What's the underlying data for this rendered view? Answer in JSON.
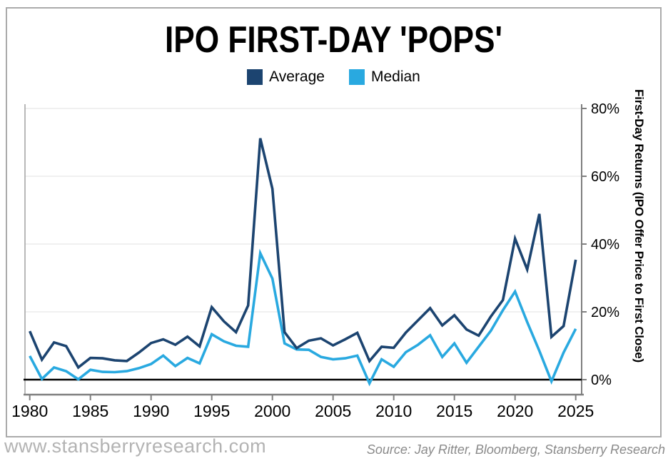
{
  "title": "IPO FIRST-DAY 'POPS'",
  "legend": {
    "average_label": "Average",
    "median_label": "Median"
  },
  "colors": {
    "average": "#1c4470",
    "median": "#29a9e0",
    "zero_line": "#000000",
    "axis": "#7f7f7f",
    "gridline": "#ebebeb"
  },
  "footer": {
    "website": "www.stansberryresearch.com",
    "source": "Source: Jay Ritter, Bloomberg, Stansberry Research"
  },
  "chart_data": {
    "type": "line",
    "title": "IPO FIRST-DAY 'POPS'",
    "ylabel": "First-Day Returns (IPO Offer Price to First Close)",
    "legend_position": "top-center",
    "axis_side": "right",
    "grid": "horizontal",
    "ylim": [
      -5,
      84
    ],
    "y_tick_values": [
      80,
      60,
      40,
      20,
      0
    ],
    "y_tick_labels": [
      "80%",
      "60%",
      "40%",
      "20%",
      "0%"
    ],
    "x_ticks": [
      1980,
      1985,
      1990,
      1995,
      2000,
      2005,
      2010,
      2015,
      2020,
      2025
    ],
    "x": [
      1980,
      1981,
      1982,
      1983,
      1984,
      1985,
      1986,
      1987,
      1988,
      1989,
      1990,
      1991,
      1992,
      1993,
      1994,
      1995,
      1996,
      1997,
      1998,
      1999,
      2000,
      2001,
      2002,
      2003,
      2004,
      2005,
      2006,
      2007,
      2008,
      2009,
      2010,
      2011,
      2012,
      2013,
      2014,
      2015,
      2016,
      2017,
      2018,
      2019,
      2020,
      2021,
      2022,
      2023,
      2024,
      2025
    ],
    "series": [
      {
        "name": "Average",
        "color": "#1c4470",
        "values": [
          14.3,
          5.9,
          11.0,
          9.9,
          3.6,
          6.4,
          6.3,
          5.7,
          5.5,
          8.0,
          10.8,
          11.9,
          10.3,
          12.7,
          9.8,
          21.4,
          17.2,
          14.0,
          21.9,
          71.2,
          56.3,
          14.0,
          9.3,
          11.5,
          12.2,
          10.1,
          11.9,
          13.8,
          5.5,
          9.7,
          9.4,
          13.9,
          17.5,
          21.1,
          16.0,
          19.0,
          14.8,
          13.0,
          18.6,
          23.5,
          41.6,
          32.5,
          48.9,
          12.6,
          15.8,
          35.4
        ]
      },
      {
        "name": "Median",
        "color": "#29a9e0",
        "values": [
          7.0,
          0.2,
          3.6,
          2.5,
          0.1,
          2.9,
          2.3,
          2.2,
          2.5,
          3.4,
          4.6,
          7.1,
          4.0,
          6.4,
          4.8,
          13.4,
          11.3,
          10.0,
          9.7,
          37.3,
          29.8,
          10.7,
          8.9,
          8.8,
          6.7,
          6.0,
          6.3,
          7.1,
          -1.1,
          6.0,
          3.8,
          8.1,
          10.3,
          13.1,
          6.7,
          10.7,
          5.0,
          9.7,
          14.4,
          20.5,
          26.0,
          17.0,
          8.5,
          -0.5,
          8.0,
          15.0
        ]
      }
    ]
  }
}
